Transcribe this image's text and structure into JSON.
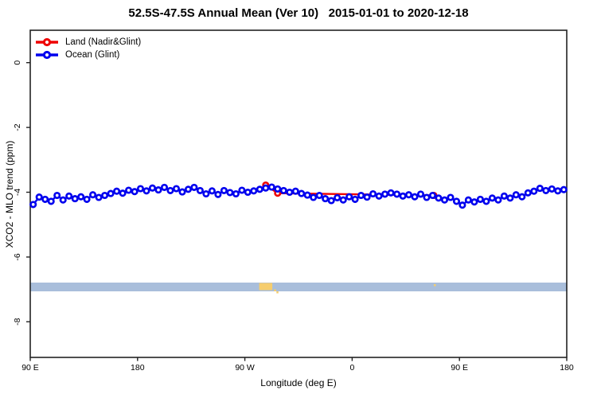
{
  "title": "52.5S-47.5S Annual Mean (Ver 10)   2015-01-01 to 2020-12-18",
  "legend": [
    {
      "label": "Land (Nadir&Glint)",
      "color": "#ee0000"
    },
    {
      "label": "Ocean (Glint)",
      "color": "#0000ee"
    }
  ],
  "axes": {
    "x_title": "Longitude (deg E)",
    "y_title": "XCO2 - MLO trend (ppm)",
    "x_ticks": [
      {
        "pos": 90,
        "label": "90 E"
      },
      {
        "pos": 180,
        "label": "180"
      },
      {
        "pos": 270,
        "label": "90 W"
      },
      {
        "pos": 360,
        "label": "0"
      },
      {
        "pos": 450,
        "label": "90 E"
      },
      {
        "pos": 540,
        "label": "180"
      }
    ],
    "y_ticks": [
      {
        "pos": 0,
        "label": "0"
      },
      {
        "pos": -2,
        "label": "-2"
      },
      {
        "pos": -4,
        "label": "-4"
      },
      {
        "pos": -6,
        "label": "-6"
      },
      {
        "pos": -8,
        "label": "-8"
      }
    ]
  },
  "chart_data": {
    "type": "line",
    "title": "52.5S-47.5S Annual Mean (Ver 10)   2015-01-01 to 2020-12-18",
    "xlabel": "Longitude (deg E)",
    "ylabel": "XCO2 - MLO trend (ppm)",
    "xlim": [
      90,
      540
    ],
    "ylim": [
      -9.1,
      1.0
    ],
    "x_axis_note": "longitude wraps eastward: 90E,180,90W,0,90E,180",
    "grid": false,
    "legend_position": "top-left-inside",
    "series": [
      {
        "name": "Land (Nadir&Glint)",
        "color": "#ee0000",
        "marker": "open-circle",
        "points": [
          {
            "x": 287.5,
            "y": -3.78
          },
          {
            "x": 297.5,
            "y": -4.03
          },
          {
            "x": 428.5,
            "y": -4.1
          }
        ]
      },
      {
        "name": "Ocean (Glint)",
        "color": "#0000ee",
        "marker": "open-circle",
        "x_start": 92.5,
        "x_step": 5,
        "values": [
          -4.38,
          -4.15,
          -4.22,
          -4.28,
          -4.1,
          -4.24,
          -4.12,
          -4.2,
          -4.14,
          -4.22,
          -4.08,
          -4.16,
          -4.1,
          -4.04,
          -3.97,
          -4.03,
          -3.94,
          -3.98,
          -3.89,
          -3.96,
          -3.87,
          -3.93,
          -3.85,
          -3.95,
          -3.89,
          -3.99,
          -3.91,
          -3.85,
          -3.95,
          -4.05,
          -3.96,
          -4.07,
          -3.95,
          -4.01,
          -4.05,
          -3.94,
          -4.0,
          -3.96,
          -3.91,
          -3.87,
          -3.84,
          -3.9,
          -3.95,
          -4.0,
          -3.97,
          -4.04,
          -4.09,
          -4.16,
          -4.1,
          -4.2,
          -4.26,
          -4.17,
          -4.24,
          -4.14,
          -4.22,
          -4.1,
          -4.15,
          -4.05,
          -4.12,
          -4.06,
          -4.02,
          -4.06,
          -4.12,
          -4.08,
          -4.14,
          -4.06,
          -4.16,
          -4.1,
          -4.18,
          -4.24,
          -4.16,
          -4.28,
          -4.4,
          -4.24,
          -4.3,
          -4.22,
          -4.28,
          -4.18,
          -4.24,
          -4.12,
          -4.18,
          -4.08,
          -4.14,
          -4.02,
          -3.97,
          -3.88,
          -3.95,
          -3.9,
          -3.96,
          -3.92
        ]
      }
    ],
    "map_strip": {
      "description": "land/ocean strip for latitude band",
      "ocean_color": "#a9bedb",
      "land_color": "#f6cd6d",
      "ppm_top": -6.79,
      "ppm_bottom": -7.06,
      "land_blocks": [
        {
          "from_deg": 282,
          "to_deg": 293
        }
      ],
      "land_specks": [
        {
          "deg": 294.5,
          "ppm": -7.0
        },
        {
          "deg": 296.5,
          "ppm": -7.06
        },
        {
          "deg": 428.5,
          "ppm": -6.84
        }
      ]
    }
  }
}
